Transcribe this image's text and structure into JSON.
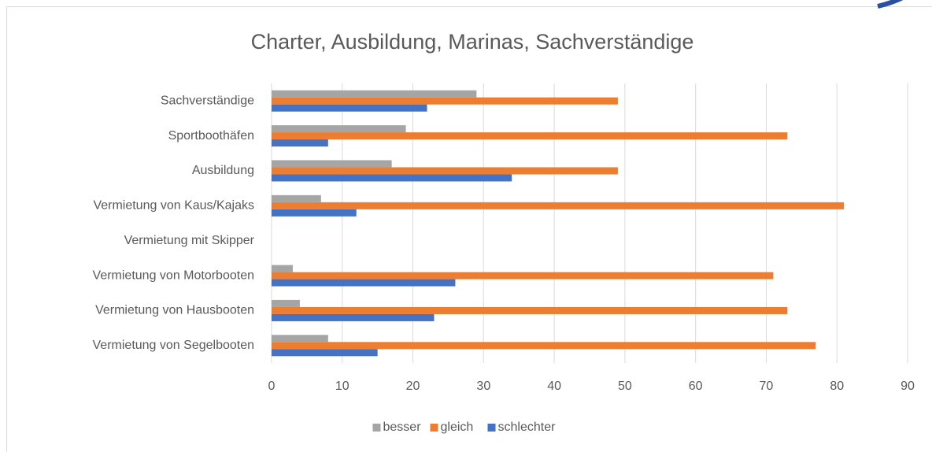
{
  "chart_data": {
    "type": "bar",
    "orientation": "horizontal",
    "title": "Charter, Ausbildung, Marinas, Sachverständige",
    "categories": [
      "Sachverständige",
      "Sportboothäfen",
      "Ausbildung",
      "Vermietung von Kaus/Kajaks",
      "Vermietung mit Skipper",
      "Vermietung von Motorbooten",
      "Vermietung von Hausbooten",
      "Vermietung von Segelbooten"
    ],
    "series": [
      {
        "name": "besser",
        "color": "#a5a5a5",
        "values": [
          29,
          19,
          17,
          7,
          0,
          3,
          4,
          8
        ]
      },
      {
        "name": "gleich",
        "color": "#ed7d31",
        "values": [
          49,
          73,
          49,
          81,
          0,
          71,
          73,
          77
        ]
      },
      {
        "name": "schlechter",
        "color": "#4472c4",
        "values": [
          22,
          8,
          34,
          12,
          0,
          26,
          23,
          15
        ]
      }
    ],
    "xlim": [
      0,
      90
    ],
    "xticks": [
      0,
      10,
      20,
      30,
      40,
      50,
      60,
      70,
      80,
      90
    ],
    "grid": true,
    "legend": "bottom"
  }
}
